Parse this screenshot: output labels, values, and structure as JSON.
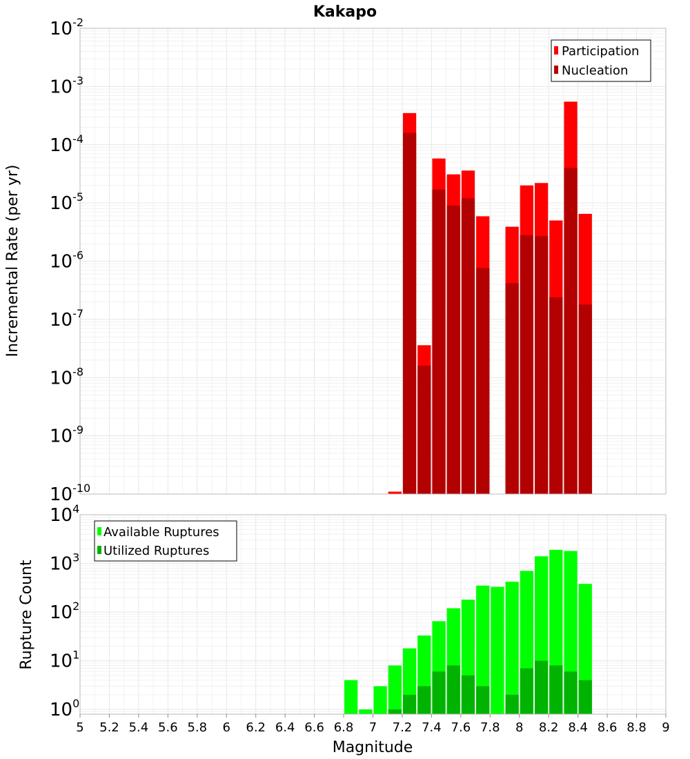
{
  "chart_data": [
    {
      "type": "bar",
      "title": "Kakapo",
      "ylabel": "Incremental Rate (per yr)",
      "xlabel": "",
      "y_scale": "log",
      "ylim": [
        1e-10,
        0.01
      ],
      "xlim": [
        5,
        9
      ],
      "y_ticks": [
        {
          "exp": "-10",
          "value": 1e-10
        },
        {
          "exp": "-9",
          "value": 1e-09
        },
        {
          "exp": "-8",
          "value": 1e-08
        },
        {
          "exp": "-7",
          "value": 1e-07
        },
        {
          "exp": "-6",
          "value": 1e-06
        },
        {
          "exp": "-5",
          "value": 1e-05
        },
        {
          "exp": "-4",
          "value": 0.0001
        },
        {
          "exp": "-3",
          "value": 0.001
        },
        {
          "exp": "-2",
          "value": 0.01
        }
      ],
      "bar_width": 0.1,
      "grid": true,
      "legend_position": "top-right",
      "series": [
        {
          "name": "Participation",
          "color": "#ff0000",
          "x": [
            7.15,
            7.25,
            7.35,
            7.45,
            7.55,
            7.65,
            7.75,
            7.95,
            8.05,
            8.15,
            8.25,
            8.35,
            8.45
          ],
          "values": [
            1.1e-10,
            0.00035,
            3.6e-08,
            5.8e-05,
            3.1e-05,
            3.6e-05,
            5.9e-06,
            3.9e-06,
            2e-05,
            2.2e-05,
            5e-06,
            0.00055,
            6.5e-06
          ]
        },
        {
          "name": "Nucleation",
          "color": "#b30000",
          "x": [
            7.25,
            7.35,
            7.45,
            7.55,
            7.65,
            7.75,
            7.95,
            8.05,
            8.15,
            8.25,
            8.35,
            8.45
          ],
          "values": [
            0.00016,
            1.6e-08,
            1.7e-05,
            9e-06,
            1.2e-05,
            7.6e-07,
            4.2e-07,
            2.8e-06,
            2.7e-06,
            2.4e-07,
            4e-05,
            1.8e-07
          ]
        }
      ]
    },
    {
      "type": "bar",
      "title": "",
      "ylabel": "Rupture Count",
      "xlabel": "Magnitude",
      "y_scale": "log",
      "ylim": [
        0.8,
        10000.0
      ],
      "xlim": [
        5,
        9
      ],
      "y_ticks": [
        {
          "exp": "0",
          "value": 1
        },
        {
          "exp": "1",
          "value": 10
        },
        {
          "exp": "2",
          "value": 100
        },
        {
          "exp": "3",
          "value": 1000
        },
        {
          "exp": "4",
          "value": 10000
        }
      ],
      "x_ticks": [
        "5",
        "5.2",
        "5.4",
        "5.6",
        "5.8",
        "6",
        "6.2",
        "6.4",
        "6.6",
        "6.8",
        "7",
        "7.2",
        "7.4",
        "7.6",
        "7.8",
        "8",
        "8.2",
        "8.4",
        "8.6",
        "8.8",
        "9"
      ],
      "bar_width": 0.1,
      "grid": true,
      "legend_position": "top-left",
      "series": [
        {
          "name": "Available Ruptures",
          "color": "#00ff00",
          "x": [
            6.85,
            6.95,
            7.05,
            7.15,
            7.25,
            7.35,
            7.45,
            7.55,
            7.65,
            7.75,
            7.85,
            7.95,
            8.05,
            8.15,
            8.25,
            8.35,
            8.45
          ],
          "values": [
            4,
            1,
            3,
            8,
            18,
            33,
            65,
            120,
            180,
            350,
            330,
            420,
            700,
            1400,
            1900,
            1800,
            380
          ]
        },
        {
          "name": "Utilized Ruptures",
          "color": "#00b300",
          "x": [
            7.15,
            7.25,
            7.35,
            7.45,
            7.55,
            7.65,
            7.75,
            7.95,
            8.05,
            8.15,
            8.25,
            8.35,
            8.45
          ],
          "values": [
            1,
            2,
            3,
            6,
            8,
            5,
            3,
            2,
            7,
            10,
            8,
            6,
            4
          ]
        }
      ]
    }
  ]
}
